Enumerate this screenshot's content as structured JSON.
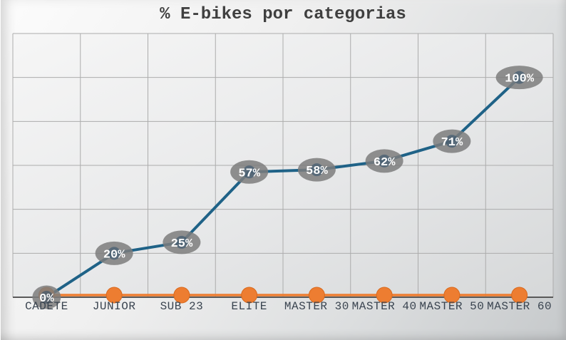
{
  "title": "% E-bikes por categorias",
  "colors": {
    "title_text": "#3f3f3f",
    "xaxis_label_text": "#3a4450",
    "gridline": "#acacac",
    "axis_line": "#595959",
    "plot_bg_light": "#f6f6f6",
    "plot_bg_mid": "#e7e8e9",
    "plot_bg_dark": "#d6d8d9",
    "series_line": "#1f6287",
    "series_marker": "#2e4f69",
    "baseline_series": "#ed7d31",
    "baseline_marker_edge": "#d96a1e",
    "data_label_bg": "#7c7c7c",
    "data_label_text": "#ffffff"
  },
  "chart_data": {
    "type": "line",
    "title": "% E-bikes por categorias",
    "categories": [
      "CADETE",
      "JUNIOR",
      "SUB 23",
      "ELITE",
      "MASTER 30",
      "MASTER 40",
      "MASTER 50",
      "MASTER 60"
    ],
    "series": [
      {
        "name": "% e-bikes",
        "values": [
          0,
          20,
          25,
          57,
          58,
          62,
          71,
          100
        ],
        "point_labels": [
          "0%",
          "20%",
          "25%",
          "57%",
          "58%",
          "62%",
          "71%",
          "100%"
        ]
      },
      {
        "name": "baseline",
        "values": [
          0,
          0,
          0,
          0,
          0,
          0,
          0,
          0
        ],
        "point_labels": []
      }
    ],
    "xlabel": "",
    "ylabel": "",
    "ylim": [
      0,
      120
    ],
    "ytick_step": 20,
    "grid": true,
    "yaxis_tick_labels_visible": false,
    "legend": "none"
  }
}
